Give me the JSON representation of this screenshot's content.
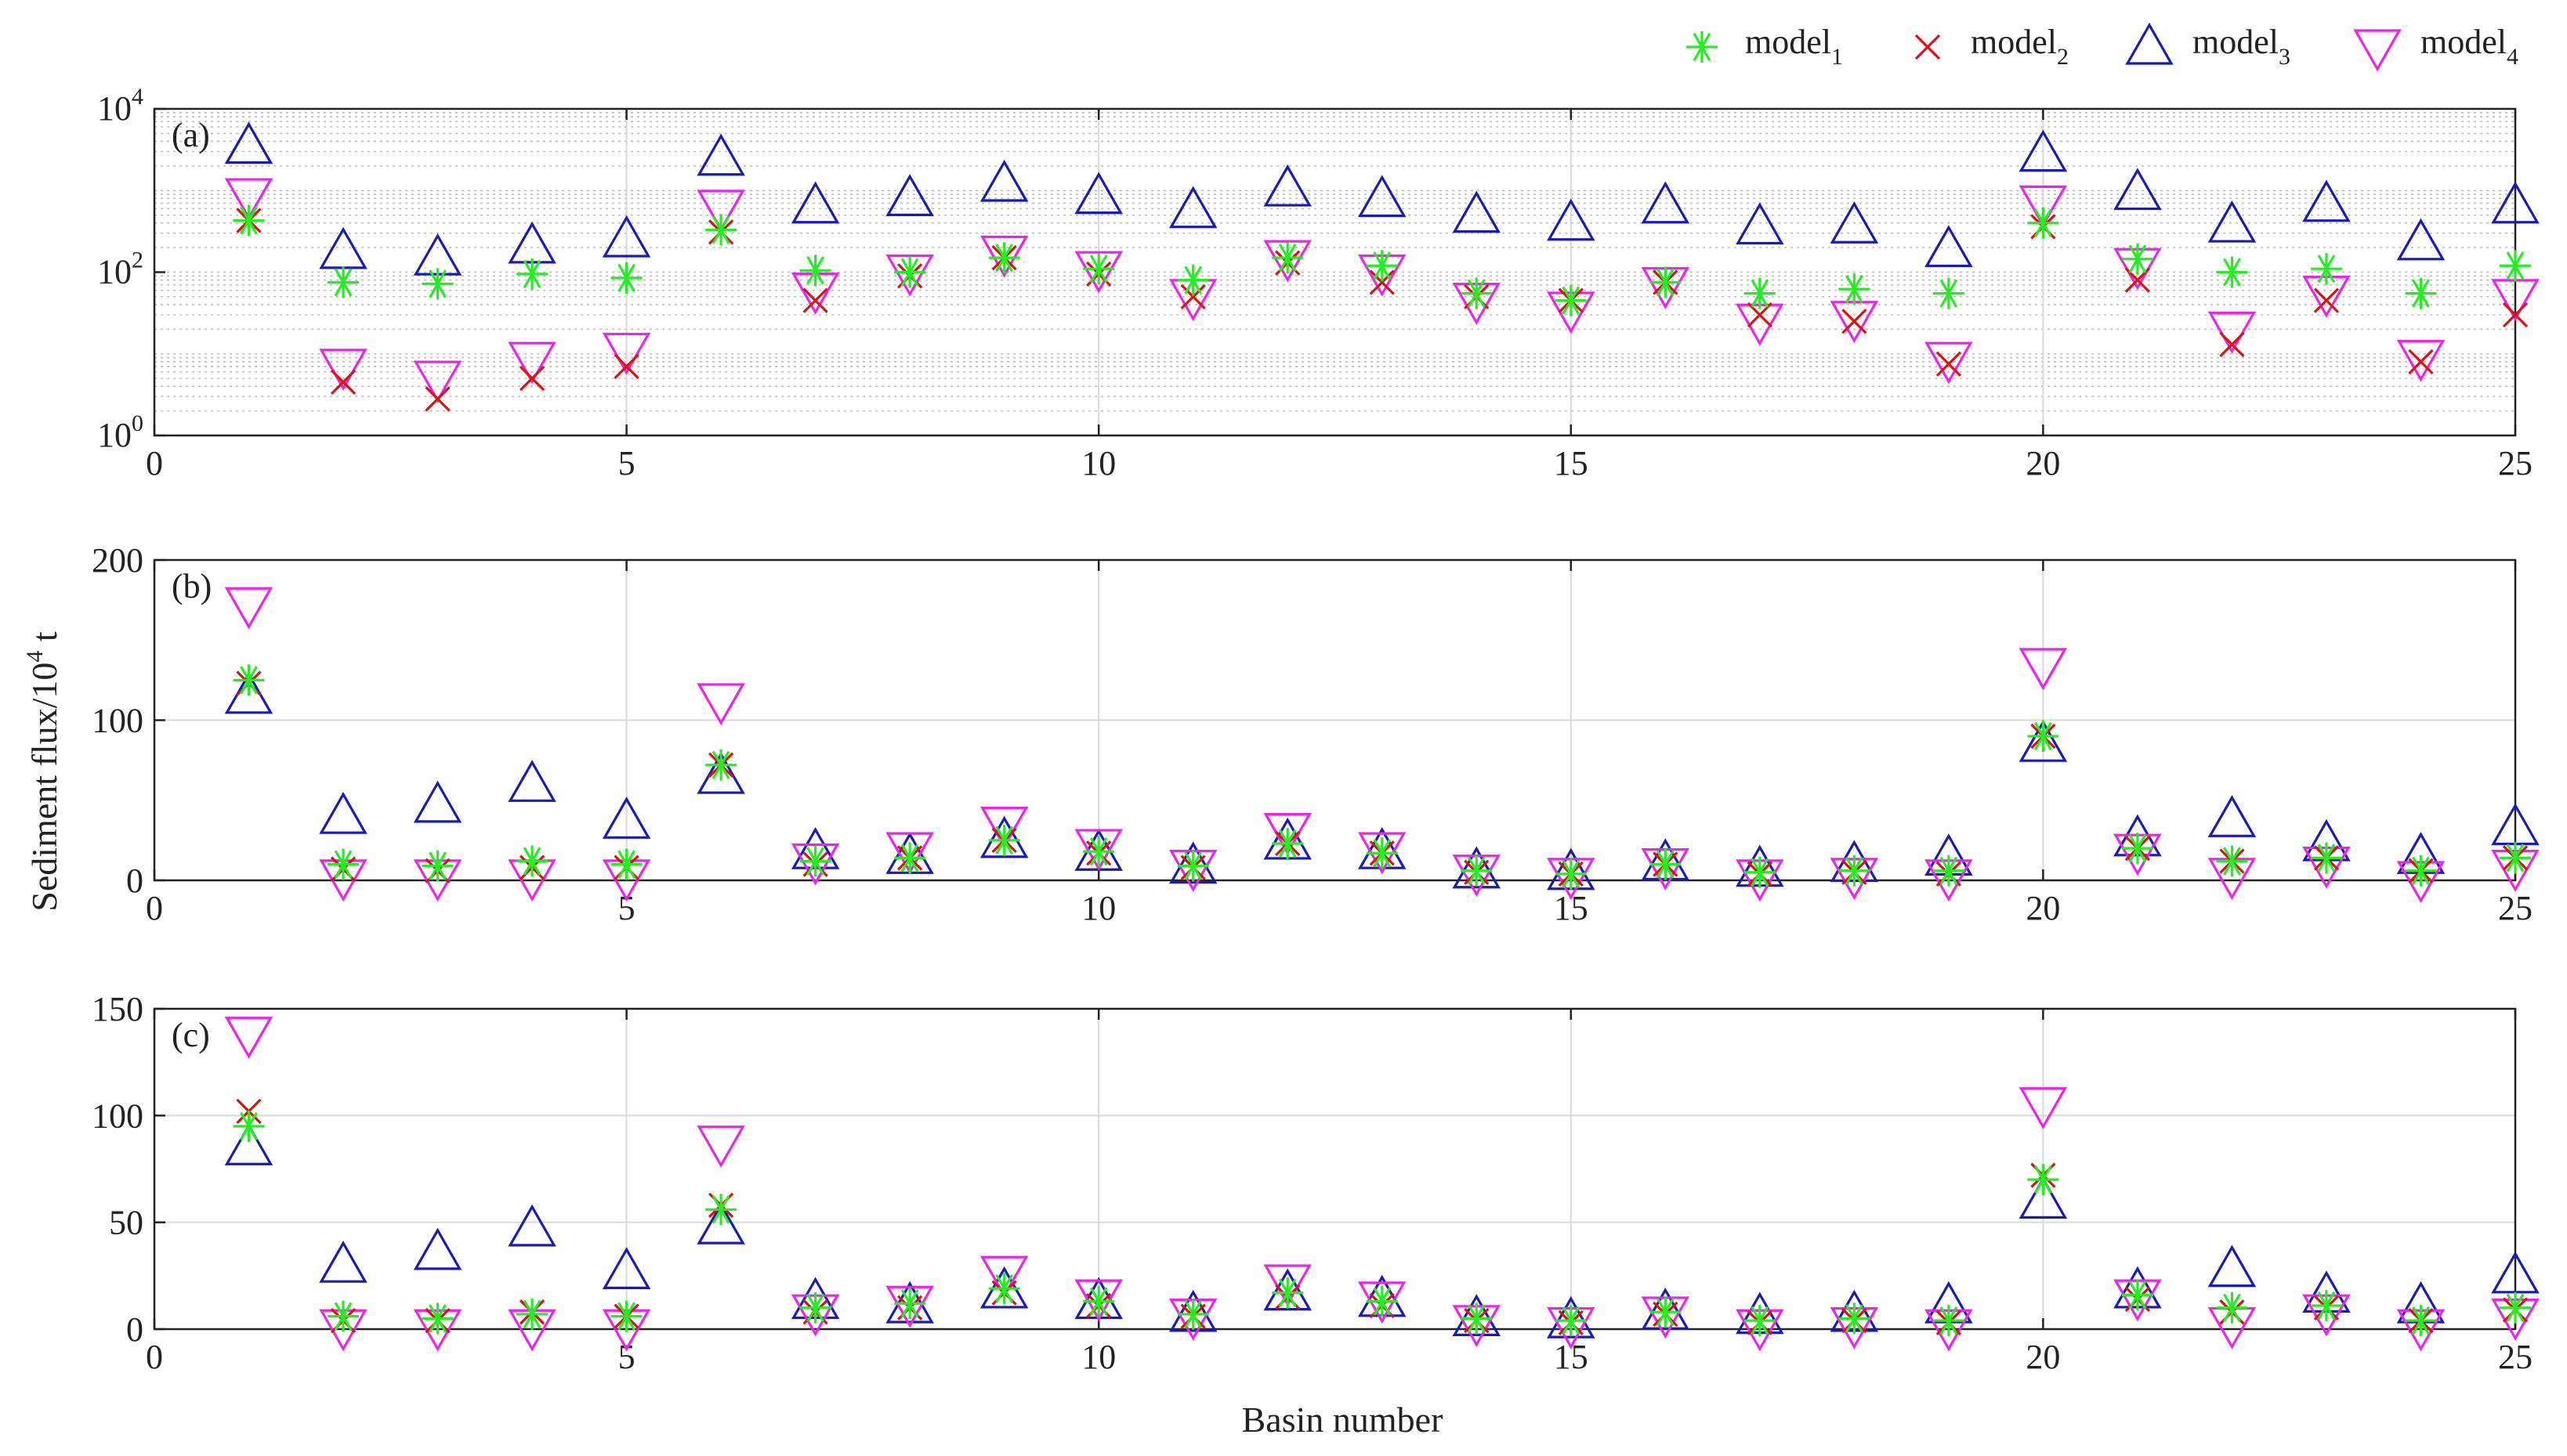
{
  "legend": {
    "entries": [
      {
        "base": "model",
        "sub": "1",
        "marker": "asterisk",
        "color": "#22ee22"
      },
      {
        "base": "model",
        "sub": "2",
        "marker": "x",
        "color": "#dd1111"
      },
      {
        "base": "model",
        "sub": "3",
        "marker": "triangle-up",
        "color": "#1a1ab8"
      },
      {
        "base": "model",
        "sub": "4",
        "marker": "triangle-down",
        "color": "#ee22ee"
      }
    ]
  },
  "ylabel": {
    "base": "Sediment flux/10",
    "sup": "4",
    "tail": " t"
  },
  "xlabel": "Basin number",
  "chart_data": [
    {
      "type": "scatter",
      "panel": "(a)",
      "yscale": "log",
      "xlim": [
        0,
        25
      ],
      "ylim": [
        1,
        10000
      ],
      "xticks": [
        0,
        5,
        10,
        15,
        20,
        25
      ],
      "ytick_labels": [
        {
          "base": "10",
          "sup": "0",
          "value": 1
        },
        {
          "base": "10",
          "sup": "2",
          "value": 100
        },
        {
          "base": "10",
          "sup": "4",
          "value": 10000
        }
      ],
      "grid": true,
      "minor_grid": true,
      "x": [
        1,
        2,
        3,
        4,
        5,
        6,
        7,
        8,
        9,
        10,
        11,
        12,
        13,
        14,
        15,
        16,
        17,
        18,
        19,
        20,
        21,
        22,
        23,
        24,
        25
      ],
      "series": [
        {
          "name": "model1",
          "values": [
            430,
            75,
            72,
            95,
            85,
            330,
            105,
            100,
            150,
            110,
            80,
            150,
            120,
            55,
            45,
            75,
            55,
            62,
            55,
            400,
            145,
            100,
            110,
            55,
            120
          ]
        },
        {
          "name": "model2",
          "values": [
            430,
            4.5,
            2.8,
            5,
            7,
            310,
            45,
            90,
            150,
            95,
            50,
            130,
            75,
            50,
            45,
            75,
            30,
            25,
            7.5,
            360,
            80,
            13,
            45,
            8,
            30
          ]
        },
        {
          "name": "model3",
          "values": [
            3500,
            180,
            150,
            210,
            250,
            2500,
            650,
            800,
            1200,
            850,
            570,
            1050,
            780,
            500,
            400,
            650,
            360,
            370,
            190,
            2800,
            950,
            380,
            680,
            230,
            650
          ]
        },
        {
          "name": "model4",
          "values": [
            860,
            7,
            5,
            8.5,
            11,
            620,
            60,
            100,
            170,
            110,
            50,
            150,
            100,
            45,
            35,
            70,
            25,
            27,
            8.5,
            700,
            120,
            20,
            55,
            9,
            50
          ]
        }
      ]
    },
    {
      "type": "scatter",
      "panel": "(b)",
      "xlim": [
        0,
        25
      ],
      "ylim": [
        0,
        200
      ],
      "xticks": [
        0,
        5,
        10,
        15,
        20,
        25
      ],
      "yticks": [
        0,
        100,
        200
      ],
      "grid": true,
      "x": [
        1,
        2,
        3,
        4,
        5,
        6,
        7,
        8,
        9,
        10,
        11,
        12,
        13,
        14,
        15,
        16,
        17,
        18,
        19,
        20,
        21,
        22,
        23,
        24,
        25
      ],
      "series": [
        {
          "name": "model1",
          "values": [
            125,
            10,
            9,
            12,
            10,
            72,
            12,
            14,
            25,
            18,
            9,
            23,
            17,
            6,
            4,
            10,
            5,
            6,
            6,
            90,
            20,
            12,
            14,
            6,
            14
          ]
        },
        {
          "name": "model2",
          "values": [
            123,
            7,
            6,
            8,
            8,
            72,
            10,
            14,
            25,
            17,
            8,
            23,
            17,
            5,
            4,
            10,
            4,
            5,
            4,
            90,
            20,
            12,
            14,
            6,
            14
          ]
        },
        {
          "name": "model3",
          "values": [
            115,
            40,
            47,
            60,
            37,
            65,
            18,
            15,
            25,
            17,
            9,
            24,
            18,
            6,
            5,
            11,
            7,
            10,
            14,
            85,
            26,
            38,
            23,
            15,
            33
          ]
        },
        {
          "name": "model4",
          "values": [
            172,
            2,
            2,
            2,
            2,
            112,
            12,
            19,
            35,
            21,
            8,
            31,
            19,
            5,
            3,
            9,
            2,
            3,
            2,
            134,
            18,
            3,
            10,
            1,
            8
          ]
        }
      ]
    },
    {
      "type": "scatter",
      "panel": "(c)",
      "xlim": [
        0,
        25
      ],
      "ylim": [
        0,
        150
      ],
      "xticks": [
        0,
        5,
        10,
        15,
        20,
        25
      ],
      "yticks": [
        0,
        50,
        100,
        150
      ],
      "grid": true,
      "x": [
        1,
        2,
        3,
        4,
        5,
        6,
        7,
        8,
        9,
        10,
        11,
        12,
        13,
        14,
        15,
        16,
        17,
        18,
        19,
        20,
        21,
        22,
        23,
        24,
        25
      ],
      "series": [
        {
          "name": "model1",
          "values": [
            95,
            6,
            5,
            7,
            6,
            56,
            10,
            12,
            19,
            13,
            7,
            17,
            13,
            5,
            4,
            8,
            4,
            5,
            4,
            70,
            16,
            10,
            11,
            4,
            10
          ]
        },
        {
          "name": "model2",
          "values": [
            102,
            4,
            4,
            8,
            6,
            58,
            8,
            10,
            17,
            11,
            6,
            15,
            11,
            4,
            3,
            7,
            3,
            4,
            3,
            72,
            14,
            8,
            10,
            4,
            9
          ]
        },
        {
          "name": "model3",
          "values": [
            85,
            30,
            36,
            47,
            27,
            48,
            13,
            11,
            18,
            13,
            7,
            17,
            14,
            5,
            4,
            8,
            6,
            7,
            11,
            60,
            18,
            28,
            16,
            11,
            25
          ]
        },
        {
          "name": "model4",
          "values": [
            138,
            1,
            1,
            1,
            1,
            87,
            8,
            12,
            26,
            15,
            6,
            22,
            14,
            3,
            2,
            7,
            1,
            2,
            1,
            105,
            15,
            2,
            8,
            1,
            6
          ]
        }
      ]
    }
  ]
}
